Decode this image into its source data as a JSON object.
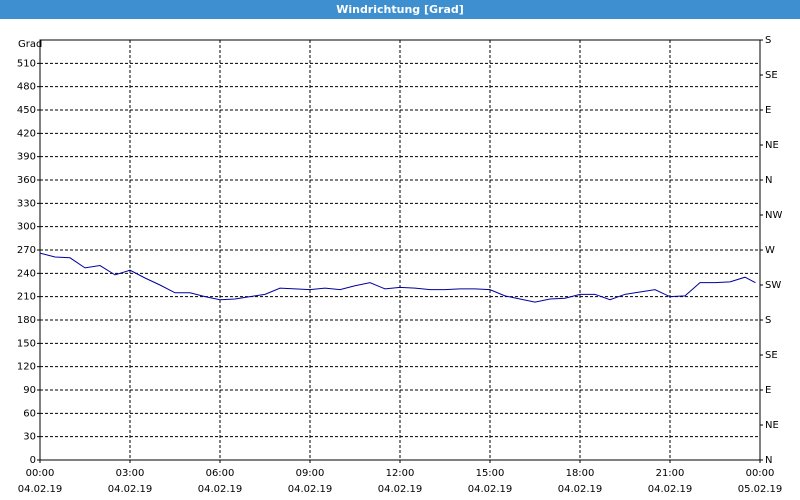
{
  "chart_data": {
    "type": "line",
    "title": "Windrichtung [Grad]",
    "y_label": "Grad",
    "x": [
      0,
      0.5,
      1,
      1.5,
      2,
      2.5,
      3,
      3.5,
      4,
      4.5,
      5,
      5.5,
      6,
      6.5,
      7,
      7.5,
      8,
      8.5,
      9,
      9.5,
      10,
      10.5,
      11,
      11.5,
      12,
      12.5,
      13,
      13.5,
      14,
      14.5,
      15,
      15.5,
      16,
      16.5,
      17,
      17.5,
      18,
      18.5,
      19,
      19.5,
      20,
      20.5,
      21,
      21.5,
      22,
      22.5,
      23,
      23.5,
      23.85
    ],
    "series": [
      {
        "name": "Windrichtung",
        "color": "#0000a0",
        "values": [
          266,
          261,
          260,
          247,
          250,
          238,
          244,
          234,
          225,
          215,
          215,
          210,
          206,
          207,
          210,
          213,
          221,
          220,
          219,
          221,
          219,
          224,
          228,
          220,
          222,
          221,
          219,
          219,
          220,
          220,
          219,
          211,
          207,
          203,
          207,
          208,
          213,
          213,
          206,
          213,
          216,
          219,
          210,
          211,
          228,
          228,
          229,
          235,
          228
        ]
      }
    ],
    "xlim": [
      0,
      24
    ],
    "xticks": [
      {
        "value": 0,
        "label": "00:00"
      },
      {
        "value": 3,
        "label": "03:00"
      },
      {
        "value": 6,
        "label": "06:00"
      },
      {
        "value": 9,
        "label": "09:00"
      },
      {
        "value": 12,
        "label": "12:00"
      },
      {
        "value": 15,
        "label": "15:00"
      },
      {
        "value": 18,
        "label": "18:00"
      },
      {
        "value": 21,
        "label": "21:00"
      },
      {
        "value": 24,
        "label": "00:00"
      }
    ],
    "xtick_dates": [
      "04.02.19",
      "04.02.19",
      "04.02.19",
      "04.02.19",
      "04.02.19",
      "04.02.19",
      "04.02.19",
      "04.02.19",
      "05.02.19"
    ],
    "ylim": [
      0,
      540
    ],
    "yticks": [
      0,
      30,
      60,
      90,
      120,
      150,
      180,
      210,
      240,
      270,
      300,
      330,
      360,
      390,
      420,
      450,
      480,
      510
    ],
    "y2lim": [
      0,
      540
    ],
    "y2ticks": [
      {
        "value": 0,
        "label": "N"
      },
      {
        "value": 45,
        "label": "NE"
      },
      {
        "value": 90,
        "label": "E"
      },
      {
        "value": 135,
        "label": "SE"
      },
      {
        "value": 180,
        "label": "S"
      },
      {
        "value": 225,
        "label": "SW"
      },
      {
        "value": 270,
        "label": "W"
      },
      {
        "value": 315,
        "label": "NW"
      },
      {
        "value": 360,
        "label": "N"
      },
      {
        "value": 405,
        "label": "NE"
      },
      {
        "value": 450,
        "label": "E"
      },
      {
        "value": 495,
        "label": "SE"
      },
      {
        "value": 540,
        "label": "S"
      }
    ],
    "grid": true
  }
}
